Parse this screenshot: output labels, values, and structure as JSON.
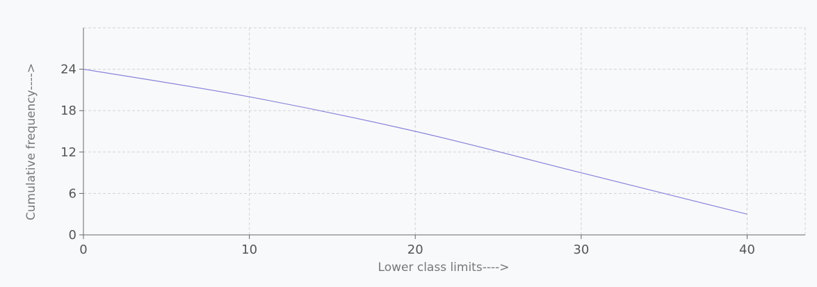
{
  "chart_data": {
    "type": "line",
    "title": "",
    "xlabel": "Lower class limits---->",
    "ylabel": "Cumulative frequency---->",
    "x_ticks": [
      0,
      10,
      20,
      30,
      40
    ],
    "y_ticks": [
      0,
      6,
      12,
      18,
      24
    ],
    "xlim": [
      0,
      43.5
    ],
    "ylim": [
      0,
      30
    ],
    "grid": true,
    "series_color": "#8884d8",
    "series": [
      {
        "x": [
          0,
          10,
          20,
          30,
          40
        ],
        "values": [
          24,
          20,
          15,
          9,
          3
        ]
      }
    ]
  }
}
